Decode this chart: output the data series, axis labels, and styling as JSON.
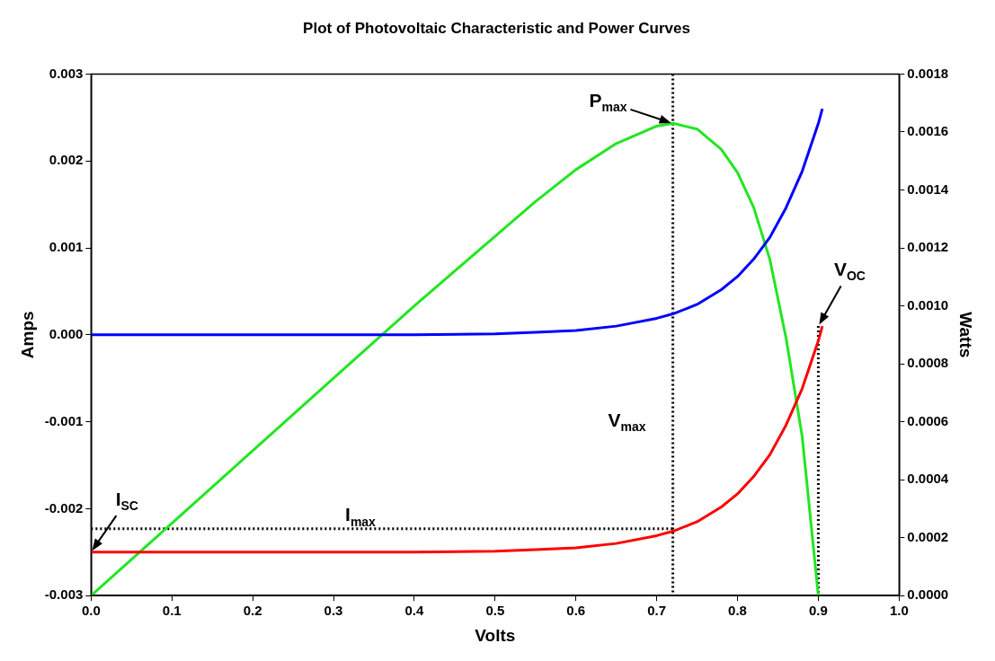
{
  "chart_data": {
    "type": "line",
    "title": "Plot of Photovoltaic Characteristic and Power Curves",
    "xlabel": "Volts",
    "ylabel": "Amps",
    "y2label": "Watts",
    "x": [
      0,
      0.1,
      0.2,
      0.3,
      0.4,
      0.5,
      0.55,
      0.6,
      0.65,
      0.7,
      0.72,
      0.75,
      0.78,
      0.8,
      0.82,
      0.84,
      0.86,
      0.88,
      0.9,
      0.905
    ],
    "series": [
      {
        "color": "#0000ff",
        "values": [
          0,
          0,
          0,
          0,
          0,
          1e-05,
          3e-05,
          5e-05,
          0.0001,
          0.00019,
          0.00024,
          0.00035,
          0.00052,
          0.00067,
          0.00087,
          0.00112,
          0.00146,
          0.00188,
          0.00243,
          0.0026
        ]
      },
      {
        "color": "#ff0000",
        "values": [
          -0.0025,
          -0.0025,
          -0.0025,
          -0.0025,
          -0.0025,
          -0.00249,
          -0.00247,
          -0.00245,
          -0.0024,
          -0.00231,
          -0.00226,
          -0.00215,
          -0.00198,
          -0.00183,
          -0.00163,
          -0.00138,
          -0.00104,
          -0.00062,
          -7e-05,
          0.0001
        ]
      },
      {
        "color": "#22e622",
        "axis": "y2",
        "x": [
          0,
          0.1,
          0.2,
          0.3,
          0.4,
          0.5,
          0.55,
          0.6,
          0.65,
          0.7,
          0.72,
          0.75,
          0.78,
          0.8,
          0.82,
          0.84,
          0.86,
          0.88,
          0.9
        ],
        "values": [
          0,
          0.00025,
          0.0005,
          0.00075,
          0.001,
          0.00124,
          0.00136,
          0.00147,
          0.00156,
          0.00162,
          0.00163,
          0.00161,
          0.00154,
          0.00146,
          0.00134,
          0.00116,
          0.00089,
          0.00055,
          0
        ]
      },
      {
        "color": "#000000",
        "line_style": "dotted",
        "x": [
          0.72,
          0.72
        ],
        "values": [
          0.003,
          -0.003
        ]
      },
      {
        "color": "#000000",
        "line_style": "dotted",
        "x": [
          0,
          0.72
        ],
        "values": [
          -0.00223,
          -0.00223
        ]
      },
      {
        "color": "#000000",
        "line_style": "dotted",
        "x": [
          0.9,
          0.9
        ],
        "values": [
          0.0001,
          -0.003
        ]
      }
    ],
    "xlim": [
      0,
      1
    ],
    "xticks": [
      {
        "value": 0,
        "label": "0.0"
      },
      0.1,
      0.2,
      0.3,
      0.4,
      0.5,
      0.6,
      0.7,
      0.8,
      0.9,
      {
        "value": 1,
        "label": "1.0"
      }
    ],
    "ylim": [
      -0.003,
      0.003
    ],
    "yticks": [
      -0.003,
      -0.002,
      -0.001,
      {
        "value": 0,
        "label": "0.000"
      },
      0.001,
      0.002,
      0.003
    ],
    "y2lim": [
      0,
      0.0018
    ],
    "y2ticks": [
      {
        "value": 0,
        "label": "0.0000"
      },
      0.0002,
      0.0004,
      0.0006,
      0.0008,
      {
        "value": 0.001,
        "label": "0.0010"
      },
      0.0012,
      0.0014,
      0.0016,
      0.0018
    ],
    "annotations": [
      {
        "text": "P$_{max}$",
        "x": 0.72,
        "y": 0.00243
      },
      {
        "text": "V$_{OC}$",
        "x": 0.9,
        "y": 0.0001
      },
      {
        "text": "V$_{max}$",
        "x": 0.72,
        "y": -0.001
      },
      {
        "text": "I$_{SC}$",
        "x": 0,
        "y": -0.0025
      },
      {
        "text": "I$_{max}$",
        "x": 0.35,
        "y": -0.00223
      }
    ],
    "grid": false,
    "legend": false
  }
}
